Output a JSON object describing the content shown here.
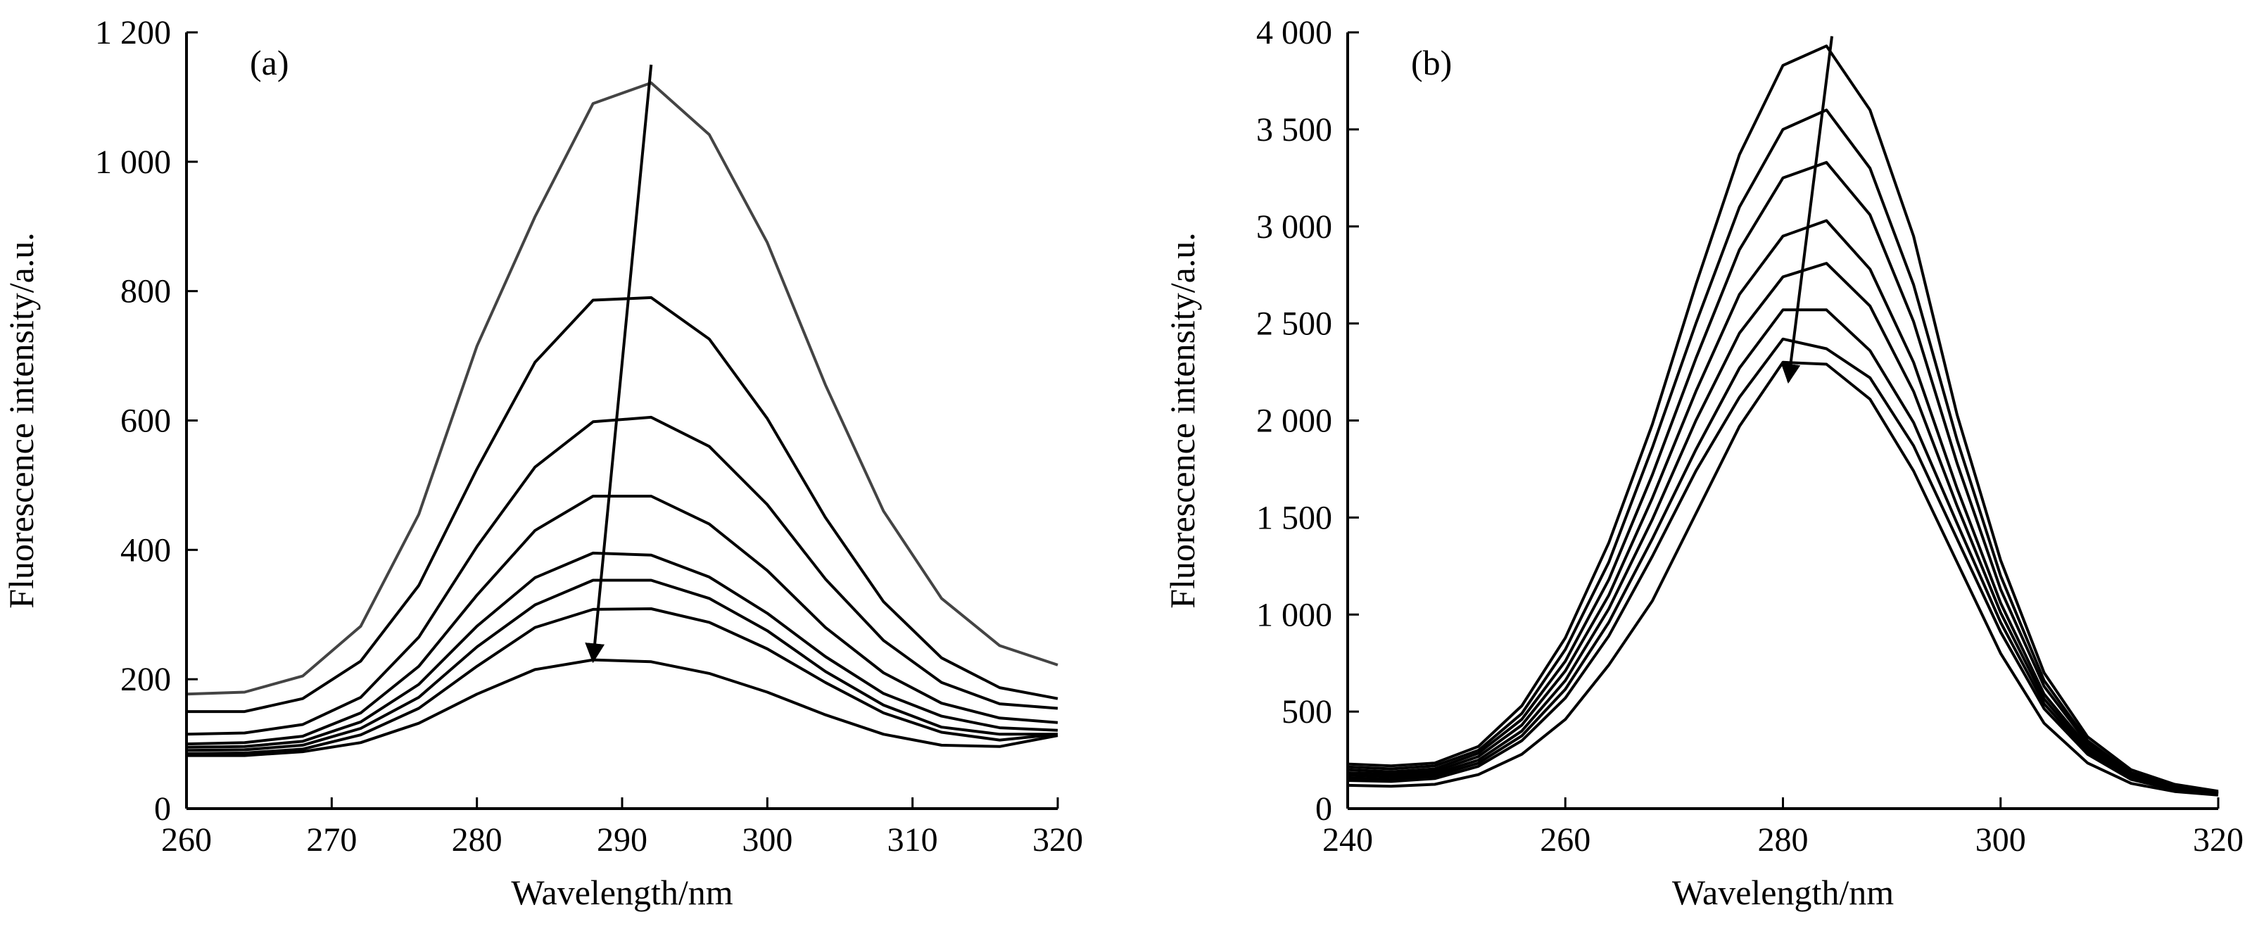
{
  "chart_data": [
    {
      "type": "line",
      "panel_label": "(a)",
      "xlabel": "Wavelength/nm",
      "ylabel": "Fluorescence intensity/a.u.",
      "xlim": [
        260,
        320
      ],
      "ylim": [
        0,
        1200
      ],
      "xticks": [
        260,
        270,
        280,
        290,
        300,
        310,
        320
      ],
      "xtick_labels": [
        "260",
        "270",
        "280",
        "290",
        "300",
        "310",
        "320"
      ],
      "yticks": [
        0,
        200,
        400,
        600,
        800,
        1000,
        1200
      ],
      "ytick_labels": [
        "0",
        "200",
        "400",
        "600",
        "800",
        "1 000",
        "1 200"
      ],
      "grid": false,
      "x": [
        260,
        264,
        268,
        272,
        276,
        280,
        284,
        288,
        292,
        296,
        300,
        304,
        308,
        312,
        316,
        320
      ],
      "series": [
        {
          "color": "#444444",
          "values": [
            177,
            180,
            205,
            282,
            455,
            715,
            915,
            1090,
            1122,
            1042,
            875,
            655,
            460,
            325,
            252,
            222
          ]
        },
        {
          "color": "#000000",
          "values": [
            150,
            150,
            170,
            228,
            345,
            525,
            690,
            786,
            790,
            726,
            603,
            450,
            320,
            233,
            187,
            170
          ]
        },
        {
          "color": "#000000",
          "values": [
            115,
            117,
            130,
            172,
            265,
            405,
            528,
            598,
            605,
            560,
            470,
            355,
            260,
            195,
            162,
            155
          ]
        },
        {
          "color": "#000000",
          "values": [
            100,
            102,
            112,
            148,
            220,
            330,
            430,
            483,
            483,
            440,
            368,
            280,
            210,
            163,
            140,
            133
          ]
        },
        {
          "color": "#000000",
          "values": [
            95,
            96,
            104,
            134,
            192,
            282,
            357,
            395,
            392,
            358,
            302,
            235,
            178,
            143,
            125,
            121
          ]
        },
        {
          "color": "#000000",
          "values": [
            90,
            91,
            98,
            124,
            172,
            250,
            315,
            353,
            353,
            325,
            275,
            212,
            160,
            126,
            115,
            115
          ]
        },
        {
          "color": "#000000",
          "values": [
            85,
            86,
            92,
            114,
            155,
            220,
            280,
            308,
            309,
            288,
            247,
            195,
            148,
            118,
            106,
            115
          ]
        },
        {
          "color": "#000000",
          "values": [
            82,
            82,
            88,
            102,
            132,
            177,
            215,
            230,
            227,
            209,
            180,
            145,
            115,
            98,
            96,
            113
          ]
        }
      ],
      "annotation_arrow": {
        "from": [
          292,
          1150
        ],
        "to": [
          288,
          228
        ]
      }
    },
    {
      "type": "line",
      "panel_label": "(b)",
      "xlabel": "Wavelength/nm",
      "ylabel": "Fluorescence intensity/a.u.",
      "xlim": [
        240,
        320
      ],
      "ylim": [
        0,
        4000
      ],
      "xticks": [
        240,
        260,
        280,
        300,
        320
      ],
      "xtick_labels": [
        "240",
        "260",
        "280",
        "300",
        "320"
      ],
      "yticks": [
        0,
        500,
        1000,
        1500,
        2000,
        2500,
        3000,
        3500,
        4000
      ],
      "ytick_labels": [
        "0",
        "500",
        "1 000",
        "1 500",
        "2 000",
        "2 500",
        "3 000",
        "3 500",
        "4 000"
      ],
      "grid": false,
      "x": [
        240,
        244,
        248,
        252,
        256,
        260,
        264,
        268,
        272,
        276,
        280,
        284,
        288,
        292,
        296,
        300,
        304,
        308,
        312,
        316,
        320
      ],
      "series": [
        {
          "color": "#000000",
          "values": [
            230,
            220,
            235,
            320,
            530,
            880,
            1370,
            1980,
            2700,
            3370,
            3830,
            3930,
            3600,
            2950,
            2030,
            1280,
            700,
            370,
            200,
            125,
            90
          ]
        },
        {
          "color": "#000000",
          "values": [
            215,
            205,
            220,
            300,
            490,
            820,
            1270,
            1860,
            2500,
            3100,
            3500,
            3600,
            3300,
            2700,
            1900,
            1200,
            660,
            350,
            185,
            118,
            85
          ]
        },
        {
          "color": "#000000",
          "values": [
            200,
            190,
            205,
            285,
            460,
            760,
            1180,
            1720,
            2320,
            2880,
            3250,
            3330,
            3060,
            2510,
            1780,
            1130,
            630,
            335,
            178,
            112,
            82
          ]
        },
        {
          "color": "#000000",
          "values": [
            185,
            178,
            192,
            268,
            430,
            710,
            1100,
            1600,
            2150,
            2650,
            2950,
            3030,
            2780,
            2300,
            1650,
            1060,
            590,
            318,
            170,
            108,
            80
          ]
        },
        {
          "color": "#000000",
          "values": [
            172,
            165,
            180,
            250,
            400,
            660,
            1030,
            1490,
            2000,
            2450,
            2740,
            2810,
            2590,
            2150,
            1560,
            1010,
            565,
            305,
            163,
            104,
            78
          ]
        },
        {
          "color": "#000000",
          "values": [
            158,
            152,
            168,
            234,
            375,
            615,
            960,
            1390,
            1850,
            2270,
            2570,
            2570,
            2360,
            1990,
            1470,
            960,
            540,
            292,
            156,
            100,
            76
          ]
        },
        {
          "color": "#000000",
          "values": [
            145,
            140,
            155,
            218,
            350,
            570,
            890,
            1300,
            1740,
            2120,
            2420,
            2370,
            2220,
            1870,
            1390,
            910,
            515,
            280,
            150,
            97,
            74
          ]
        },
        {
          "color": "#000000",
          "values": [
            120,
            115,
            125,
            175,
            280,
            460,
            740,
            1070,
            1520,
            1970,
            2300,
            2290,
            2110,
            1740,
            1270,
            800,
            440,
            235,
            130,
            88,
            70
          ]
        }
      ],
      "annotation_arrow": {
        "from": [
          284.5,
          3980
        ],
        "to": [
          280.5,
          2200
        ]
      }
    }
  ]
}
